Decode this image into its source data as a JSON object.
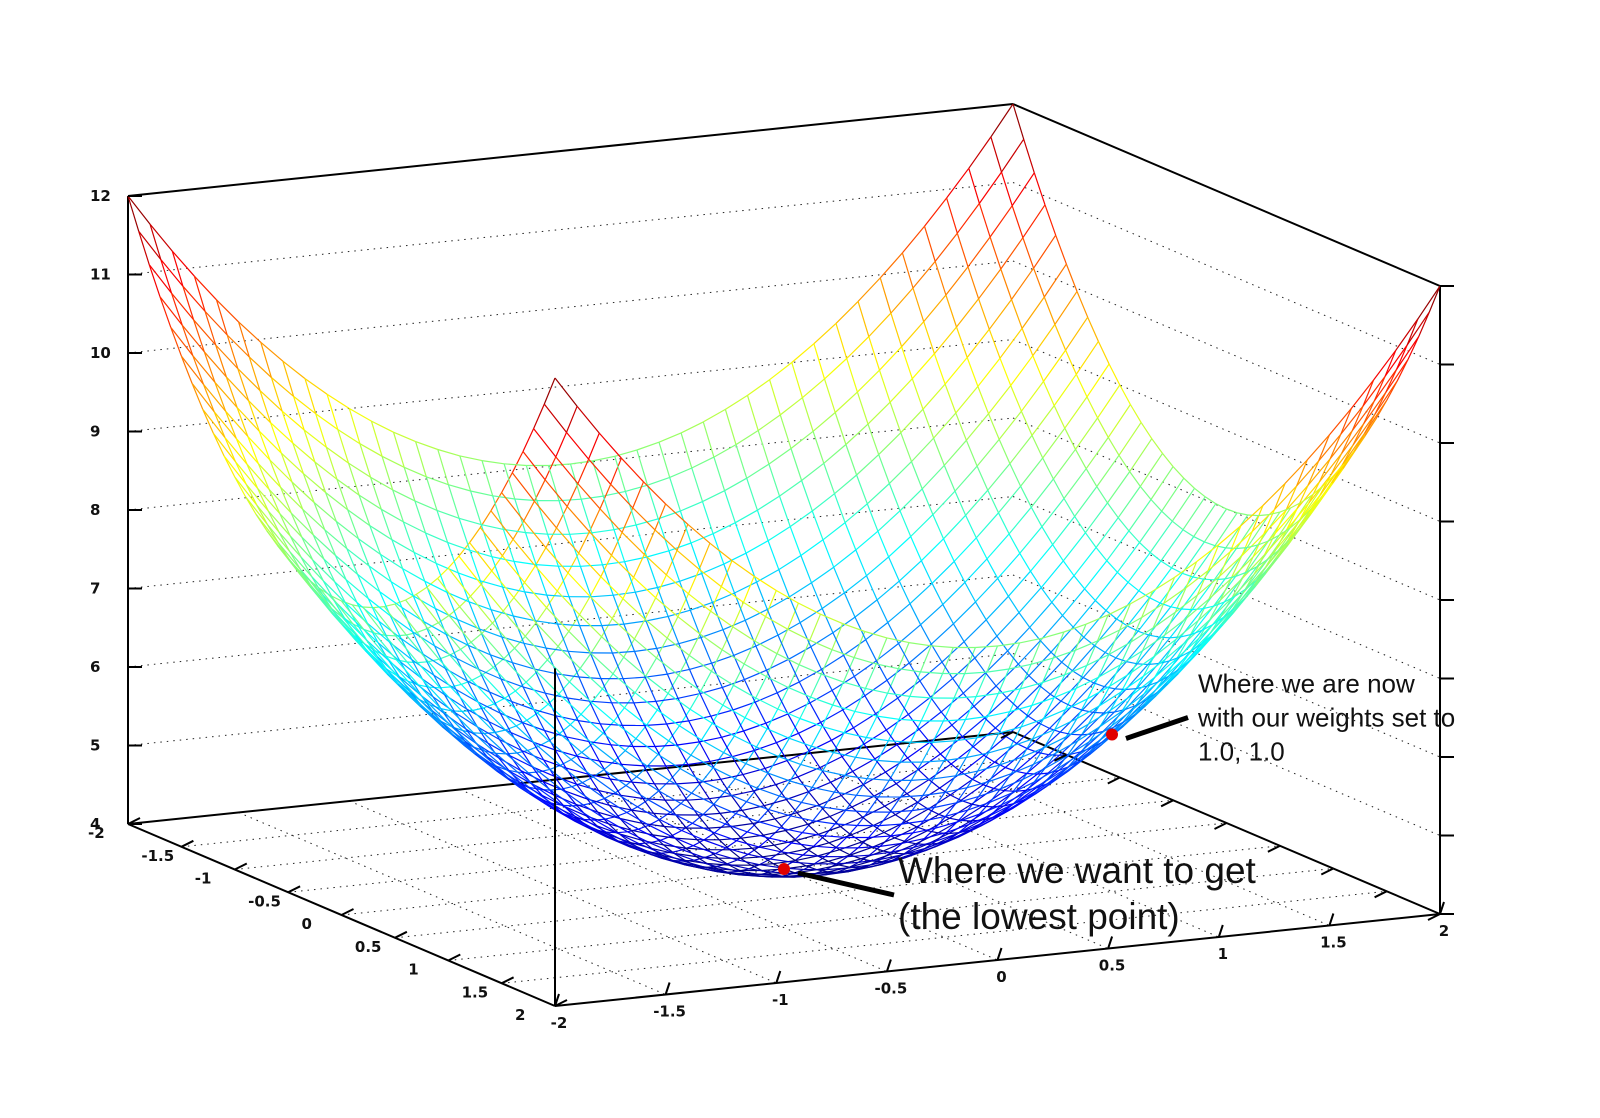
{
  "chart_data": {
    "type": "surface",
    "function": "z = x^2 + y^2 + 4",
    "x_range": [
      -2,
      2
    ],
    "y_range": [
      -2,
      2
    ],
    "z_range": [
      4,
      12
    ],
    "z_ticks": [
      "4",
      "5",
      "6",
      "7",
      "8",
      "9",
      "10",
      "11",
      "12"
    ],
    "x_ticks": [
      "-2",
      "-1.5",
      "-1",
      "-0.5",
      "0",
      "0.5",
      "1",
      "1.5",
      "2"
    ],
    "y_ticks": [
      "-2",
      "-1.5",
      "-1",
      "-0.5",
      "0",
      "0.5",
      "1",
      "1.5",
      "2"
    ],
    "grid": true,
    "colormap": "jet",
    "points": [
      {
        "name": "current",
        "x": 1.0,
        "y": 1.0,
        "z": 6.0,
        "color": "#e00000"
      },
      {
        "name": "minimum",
        "x": 0.0,
        "y": 0.0,
        "z": 4.0,
        "color": "#e00000"
      }
    ],
    "annotations": [
      {
        "target": "current",
        "lines": [
          "Where we are now",
          "with our weights set to",
          "1.0, 1.0"
        ]
      },
      {
        "target": "minimum",
        "lines": [
          "Where we want to get",
          "(the lowest point)"
        ]
      }
    ]
  }
}
